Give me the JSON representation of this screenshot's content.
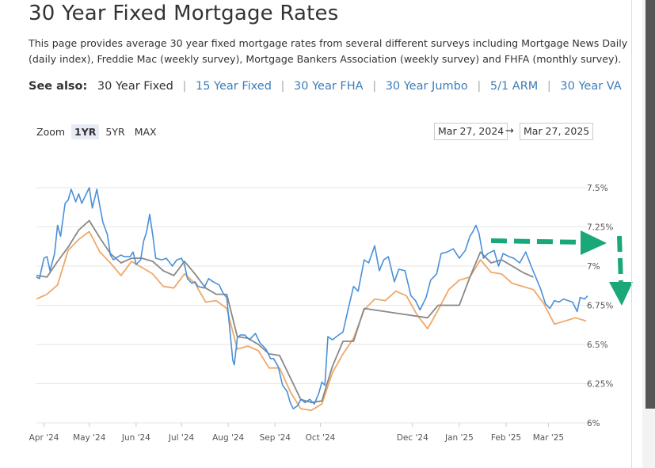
{
  "page": {
    "title": "30 Year Fixed Mortgage Rates",
    "description": "This page provides average 30 year fixed mortgage rates from several different surveys including Mortgage News Daily (daily index), Freddie Mac (weekly survey), Mortgage Bankers Association (weekly survey) and FHFA (monthly survey)."
  },
  "see_also": {
    "label": "See also:",
    "current": "30 Year Fixed",
    "links": [
      "15 Year Fixed",
      "30 Year FHA",
      "30 Year Jumbo",
      "5/1 ARM",
      "30 Year VA"
    ]
  },
  "zoom": {
    "label": "Zoom",
    "options": [
      "1YR",
      "5YR",
      "MAX"
    ],
    "active": "1YR"
  },
  "range": {
    "from": "Mar 27, 2024",
    "to": "Mar 27, 2025",
    "separator": "→"
  },
  "chart_data": {
    "type": "line",
    "x_tick_labels": [
      "Apr '24",
      "May '24",
      "Jun '24",
      "Jul '24",
      "Aug '24",
      "Sep '24",
      "Oct '24",
      "Dec '24",
      "Jan '25",
      "Feb '25",
      "Mar '25"
    ],
    "y_tick_labels": [
      "7.5%",
      "7.25%",
      "7%",
      "6.75%",
      "6.5%",
      "6.25%",
      "6%"
    ],
    "ylim": [
      6.0,
      7.5
    ],
    "grid": true,
    "legend": "none",
    "colors": {
      "daily": "#4a90d9",
      "weekly_a": "#888888",
      "weekly_b": "#f0a868",
      "annotation": "#1aa77a"
    },
    "series": [
      {
        "color": "#4a90d9",
        "points": [
          [
            "2024-03-27",
            6.93
          ],
          [
            "2024-03-29",
            6.92
          ],
          [
            "2024-04-01",
            7.05
          ],
          [
            "2024-04-03",
            7.06
          ],
          [
            "2024-04-05",
            6.97
          ],
          [
            "2024-04-08",
            7.08
          ],
          [
            "2024-04-10",
            7.26
          ],
          [
            "2024-04-12",
            7.19
          ],
          [
            "2024-04-15",
            7.4
          ],
          [
            "2024-04-17",
            7.42
          ],
          [
            "2024-04-19",
            7.49
          ],
          [
            "2024-04-22",
            7.41
          ],
          [
            "2024-04-24",
            7.46
          ],
          [
            "2024-04-26",
            7.4
          ],
          [
            "2024-04-29",
            7.46
          ],
          [
            "2024-05-01",
            7.5
          ],
          [
            "2024-05-03",
            7.37
          ],
          [
            "2024-05-06",
            7.49
          ],
          [
            "2024-05-08",
            7.38
          ],
          [
            "2024-05-10",
            7.28
          ],
          [
            "2024-05-13",
            7.2
          ],
          [
            "2024-05-15",
            7.07
          ],
          [
            "2024-05-17",
            7.04
          ],
          [
            "2024-05-20",
            7.06
          ],
          [
            "2024-05-22",
            7.07
          ],
          [
            "2024-05-24",
            7.06
          ],
          [
            "2024-05-28",
            7.06
          ],
          [
            "2024-05-30",
            7.09
          ],
          [
            "2024-06-01",
            7.01
          ],
          [
            "2024-06-04",
            7.04
          ],
          [
            "2024-06-06",
            7.16
          ],
          [
            "2024-06-08",
            7.22
          ],
          [
            "2024-06-10",
            7.33
          ],
          [
            "2024-06-12",
            7.2
          ],
          [
            "2024-06-14",
            7.05
          ],
          [
            "2024-06-18",
            7.04
          ],
          [
            "2024-06-21",
            7.05
          ],
          [
            "2024-06-25",
            7.0
          ],
          [
            "2024-06-28",
            7.04
          ],
          [
            "2024-07-01",
            7.05
          ],
          [
            "2024-07-03",
            7.01
          ],
          [
            "2024-07-05",
            6.92
          ],
          [
            "2024-07-08",
            6.89
          ],
          [
            "2024-07-10",
            6.9
          ],
          [
            "2024-07-12",
            6.87
          ],
          [
            "2024-07-16",
            6.86
          ],
          [
            "2024-07-19",
            6.92
          ],
          [
            "2024-07-22",
            6.9
          ],
          [
            "2024-07-26",
            6.88
          ],
          [
            "2024-07-29",
            6.82
          ],
          [
            "2024-07-31",
            6.8
          ],
          [
            "2024-08-02",
            6.6
          ],
          [
            "2024-08-04",
            6.4
          ],
          [
            "2024-08-05",
            6.37
          ],
          [
            "2024-08-07",
            6.54
          ],
          [
            "2024-08-09",
            6.56
          ],
          [
            "2024-08-12",
            6.56
          ],
          [
            "2024-08-15",
            6.53
          ],
          [
            "2024-08-19",
            6.57
          ],
          [
            "2024-08-22",
            6.51
          ],
          [
            "2024-08-26",
            6.47
          ],
          [
            "2024-08-29",
            6.41
          ],
          [
            "2024-08-31",
            6.41
          ],
          [
            "2024-09-03",
            6.36
          ],
          [
            "2024-09-06",
            6.24
          ],
          [
            "2024-09-09",
            6.2
          ],
          [
            "2024-09-11",
            6.13
          ],
          [
            "2024-09-13",
            6.09
          ],
          [
            "2024-09-16",
            6.11
          ],
          [
            "2024-09-18",
            6.15
          ],
          [
            "2024-09-21",
            6.13
          ],
          [
            "2024-09-24",
            6.15
          ],
          [
            "2024-09-27",
            6.12
          ],
          [
            "2024-09-30",
            6.19
          ],
          [
            "2024-10-02",
            6.26
          ],
          [
            "2024-10-04",
            6.24
          ],
          [
            "2024-10-06",
            6.55
          ],
          [
            "2024-10-09",
            6.53
          ],
          [
            "2024-10-13",
            6.56
          ],
          [
            "2024-10-16",
            6.58
          ],
          [
            "2024-10-20",
            6.75
          ],
          [
            "2024-10-23",
            6.87
          ],
          [
            "2024-10-26",
            6.84
          ],
          [
            "2024-10-30",
            7.04
          ],
          [
            "2024-11-02",
            7.02
          ],
          [
            "2024-11-06",
            7.13
          ],
          [
            "2024-11-09",
            6.97
          ],
          [
            "2024-11-12",
            7.04
          ],
          [
            "2024-11-15",
            7.06
          ],
          [
            "2024-11-19",
            6.9
          ],
          [
            "2024-11-22",
            6.98
          ],
          [
            "2024-11-26",
            6.97
          ],
          [
            "2024-11-30",
            6.81
          ],
          [
            "2024-12-03",
            6.78
          ],
          [
            "2024-12-06",
            6.72
          ],
          [
            "2024-12-10",
            6.8
          ],
          [
            "2024-12-13",
            6.91
          ],
          [
            "2024-12-17",
            6.95
          ],
          [
            "2024-12-20",
            7.08
          ],
          [
            "2024-12-24",
            7.09
          ],
          [
            "2024-12-28",
            7.11
          ],
          [
            "2025-01-01",
            7.05
          ],
          [
            "2025-01-05",
            7.1
          ],
          [
            "2025-01-08",
            7.19
          ],
          [
            "2025-01-10",
            7.22
          ],
          [
            "2025-01-12",
            7.26
          ],
          [
            "2025-01-14",
            7.21
          ],
          [
            "2025-01-17",
            7.05
          ],
          [
            "2025-01-20",
            7.08
          ],
          [
            "2025-01-24",
            7.1
          ],
          [
            "2025-01-27",
            7.0
          ],
          [
            "2025-01-30",
            7.08
          ],
          [
            "2025-02-03",
            7.06
          ],
          [
            "2025-02-06",
            7.05
          ],
          [
            "2025-02-10",
            7.02
          ],
          [
            "2025-02-14",
            7.09
          ],
          [
            "2025-02-18",
            6.99
          ],
          [
            "2025-02-21",
            6.92
          ],
          [
            "2025-02-24",
            6.85
          ],
          [
            "2025-02-27",
            6.76
          ],
          [
            "2025-03-02",
            6.73
          ],
          [
            "2025-03-05",
            6.78
          ],
          [
            "2025-03-08",
            6.77
          ],
          [
            "2025-03-11",
            6.79
          ],
          [
            "2025-03-14",
            6.78
          ],
          [
            "2025-03-17",
            6.77
          ],
          [
            "2025-03-20",
            6.71
          ],
          [
            "2025-03-22",
            6.8
          ],
          [
            "2025-03-25",
            6.79
          ],
          [
            "2025-03-27",
            6.81
          ]
        ]
      },
      {
        "color": "#888888",
        "points": [
          [
            "2024-03-27",
            6.94
          ],
          [
            "2024-04-03",
            6.93
          ],
          [
            "2024-04-10",
            7.03
          ],
          [
            "2024-04-17",
            7.12
          ],
          [
            "2024-04-24",
            7.23
          ],
          [
            "2024-05-01",
            7.29
          ],
          [
            "2024-05-08",
            7.18
          ],
          [
            "2024-05-15",
            7.08
          ],
          [
            "2024-05-22",
            7.02
          ],
          [
            "2024-05-29",
            7.05
          ],
          [
            "2024-06-05",
            7.05
          ],
          [
            "2024-06-12",
            7.03
          ],
          [
            "2024-06-19",
            6.97
          ],
          [
            "2024-06-26",
            6.94
          ],
          [
            "2024-07-03",
            7.03
          ],
          [
            "2024-07-10",
            6.95
          ],
          [
            "2024-07-17",
            6.86
          ],
          [
            "2024-07-24",
            6.82
          ],
          [
            "2024-07-31",
            6.82
          ],
          [
            "2024-08-07",
            6.55
          ],
          [
            "2024-08-14",
            6.54
          ],
          [
            "2024-08-21",
            6.5
          ],
          [
            "2024-08-28",
            6.44
          ],
          [
            "2024-09-04",
            6.43
          ],
          [
            "2024-09-11",
            6.29
          ],
          [
            "2024-09-18",
            6.15
          ],
          [
            "2024-09-25",
            6.13
          ],
          [
            "2024-10-02",
            6.14
          ],
          [
            "2024-10-09",
            6.36
          ],
          [
            "2024-10-16",
            6.52
          ],
          [
            "2024-10-23",
            6.52
          ],
          [
            "2024-10-30",
            6.73
          ],
          [
            "2024-12-11",
            6.67
          ],
          [
            "2024-12-18",
            6.75
          ],
          [
            "2024-12-25",
            6.75
          ],
          [
            "2025-01-01",
            6.75
          ],
          [
            "2025-01-08",
            6.93
          ],
          [
            "2025-01-15",
            7.09
          ],
          [
            "2025-01-22",
            7.02
          ],
          [
            "2025-01-29",
            7.04
          ],
          [
            "2025-02-05",
            7.0
          ],
          [
            "2025-02-12",
            6.96
          ],
          [
            "2025-02-19",
            6.93
          ]
        ]
      },
      {
        "color": "#f0a868",
        "points": [
          [
            "2024-03-27",
            6.79
          ],
          [
            "2024-04-03",
            6.82
          ],
          [
            "2024-04-10",
            6.88
          ],
          [
            "2024-04-17",
            7.1
          ],
          [
            "2024-04-24",
            7.17
          ],
          [
            "2024-05-01",
            7.22
          ],
          [
            "2024-05-08",
            7.09
          ],
          [
            "2024-05-15",
            7.02
          ],
          [
            "2024-05-22",
            6.94
          ],
          [
            "2024-05-29",
            7.03
          ],
          [
            "2024-06-05",
            6.99
          ],
          [
            "2024-06-12",
            6.95
          ],
          [
            "2024-06-19",
            6.87
          ],
          [
            "2024-06-26",
            6.86
          ],
          [
            "2024-07-03",
            6.95
          ],
          [
            "2024-07-10",
            6.89
          ],
          [
            "2024-07-17",
            6.77
          ],
          [
            "2024-07-24",
            6.78
          ],
          [
            "2024-07-31",
            6.73
          ],
          [
            "2024-08-07",
            6.47
          ],
          [
            "2024-08-14",
            6.49
          ],
          [
            "2024-08-21",
            6.46
          ],
          [
            "2024-08-28",
            6.35
          ],
          [
            "2024-09-04",
            6.35
          ],
          [
            "2024-09-11",
            6.2
          ],
          [
            "2024-09-18",
            6.09
          ],
          [
            "2024-09-25",
            6.08
          ],
          [
            "2024-10-02",
            6.12
          ],
          [
            "2024-10-09",
            6.32
          ],
          [
            "2024-10-16",
            6.44
          ],
          [
            "2024-10-23",
            6.54
          ],
          [
            "2024-10-30",
            6.72
          ],
          [
            "2024-11-06",
            6.79
          ],
          [
            "2024-11-13",
            6.78
          ],
          [
            "2024-11-20",
            6.84
          ],
          [
            "2024-11-27",
            6.81
          ],
          [
            "2024-12-04",
            6.69
          ],
          [
            "2024-12-11",
            6.6
          ],
          [
            "2024-12-18",
            6.72
          ],
          [
            "2024-12-25",
            6.85
          ],
          [
            "2025-01-01",
            6.91
          ],
          [
            "2025-01-08",
            6.93
          ],
          [
            "2025-01-15",
            7.04
          ],
          [
            "2025-01-22",
            6.96
          ],
          [
            "2025-01-29",
            6.95
          ],
          [
            "2025-02-05",
            6.89
          ],
          [
            "2025-02-12",
            6.87
          ],
          [
            "2025-02-19",
            6.85
          ],
          [
            "2025-02-26",
            6.76
          ],
          [
            "2025-03-05",
            6.63
          ],
          [
            "2025-03-12",
            6.65
          ],
          [
            "2025-03-19",
            6.67
          ],
          [
            "2025-03-26",
            6.65
          ]
        ]
      }
    ],
    "annotation": {
      "type": "arrows",
      "color": "#1aa77a",
      "description_hint": "dashed right arrow then dashed down arrow"
    }
  }
}
